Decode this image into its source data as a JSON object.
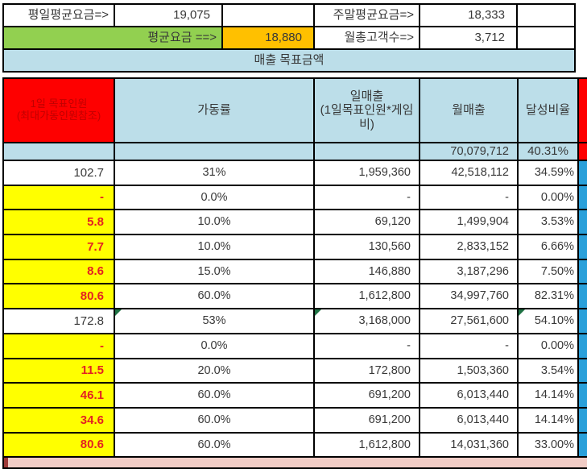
{
  "colors": {
    "green": "#92D050",
    "orange": "#FFC000",
    "light_blue": "#BCDEE9",
    "red": "#FE0000",
    "dark_red_text": "#C00000",
    "yellow": "#FFFF00",
    "red_number_text": "#E32222",
    "blue_strip": "#2AA0DA",
    "pink_footer": "#F1CCC5",
    "pink_footer_accent": "#9E3A38",
    "error_triangle_green": "#1F7244"
  },
  "top": {
    "weekday_avg_fee_label": "평일평균요금=>",
    "weekday_avg_fee_value": "19,075",
    "weekend_avg_fee_label": "주말평균요금=>",
    "weekend_avg_fee_value": "18,333",
    "avg_fee_label": "평균요금  ==>",
    "avg_fee_value": "18,880",
    "monthly_customers_label": "월총고객수=>",
    "monthly_customers_value": "3,712",
    "banner": "매출 목표금액"
  },
  "table": {
    "headers": {
      "people": "1일 목표인원\n(최대가동인원참조)",
      "utilization": "가동률",
      "daily_sales": "일매출\n(1일목표인원*게임\n비)",
      "monthly_sales": "월매출",
      "achievement": "달성비율"
    },
    "summary": {
      "monthly_sales": "70,079,712",
      "achievement": "40.31%"
    },
    "rows": [
      {
        "people": "102.7",
        "util": "31%",
        "daily": "1,959,360",
        "monthly": "42,518,112",
        "ach": "34.59%"
      },
      {
        "people": "-",
        "util": "0.0%",
        "daily": "-",
        "monthly": "-",
        "ach": "0.00%"
      },
      {
        "people": "5.8",
        "util": "10.0%",
        "daily": "69,120",
        "monthly": "1,499,904",
        "ach": "3.53%"
      },
      {
        "people": "7.7",
        "util": "10.0%",
        "daily": "130,560",
        "monthly": "2,833,152",
        "ach": "6.66%"
      },
      {
        "people": "8.6",
        "util": "15.0%",
        "daily": "146,880",
        "monthly": "3,187,296",
        "ach": "7.50%"
      },
      {
        "people": "80.6",
        "util": "60.0%",
        "daily": "1,612,800",
        "monthly": "34,997,760",
        "ach": "82.31%"
      },
      {
        "people": "172.8",
        "util": "53%",
        "daily": "3,168,000",
        "monthly": "27,561,600",
        "ach": "54.10%"
      },
      {
        "people": "-",
        "util": "0.0%",
        "daily": "-",
        "monthly": "-",
        "ach": "0.00%"
      },
      {
        "people": "11.5",
        "util": "20.0%",
        "daily": "172,800",
        "monthly": "1,503,360",
        "ach": "3.54%"
      },
      {
        "people": "46.1",
        "util": "60.0%",
        "daily": "691,200",
        "monthly": "6,013,440",
        "ach": "14.14%"
      },
      {
        "people": "34.6",
        "util": "60.0%",
        "daily": "691,200",
        "monthly": "6,013,440",
        "ach": "14.14%"
      },
      {
        "people": "80.6",
        "util": "60.0%",
        "daily": "1,612,800",
        "monthly": "14,031,360",
        "ach": "33.00%"
      }
    ]
  }
}
